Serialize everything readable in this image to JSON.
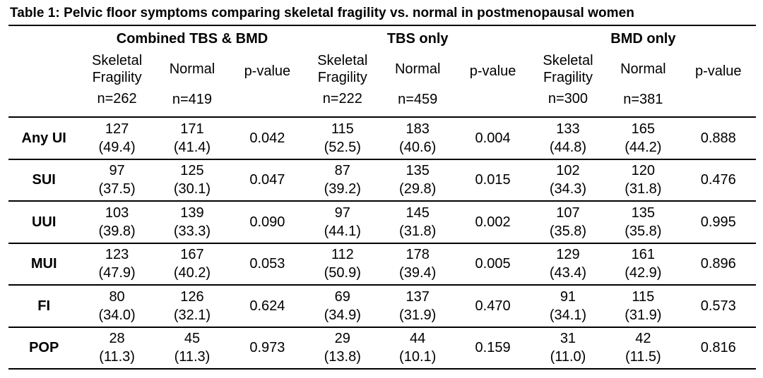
{
  "title": "Table 1: Pelvic floor symptoms comparing skeletal fragility vs. normal in postmenopausal women",
  "groups": [
    "Combined TBS & BMD",
    "TBS only",
    "BMD only"
  ],
  "subheaders": {
    "skeletal_line1": "Skeletal",
    "skeletal_line2": "Fragility",
    "normal": "Normal",
    "pvalue": "p-value"
  },
  "counts": {
    "combined": {
      "skeletal": "n=262",
      "normal": "n=419"
    },
    "tbs": {
      "skeletal": "n=222",
      "normal": "n=459"
    },
    "bmd": {
      "skeletal": "n=300",
      "normal": "n=381"
    }
  },
  "rows": [
    {
      "label": "Any UI",
      "combined": {
        "sf_n": "127",
        "sf_pct": "(49.4)",
        "nm_n": "171",
        "nm_pct": "(41.4)",
        "p": "0.042"
      },
      "tbs": {
        "sf_n": "115",
        "sf_pct": "(52.5)",
        "nm_n": "183",
        "nm_pct": "(40.6)",
        "p": "0.004"
      },
      "bmd": {
        "sf_n": "133",
        "sf_pct": "(44.8)",
        "nm_n": "165",
        "nm_pct": "(44.2)",
        "p": "0.888"
      }
    },
    {
      "label": "SUI",
      "combined": {
        "sf_n": "97",
        "sf_pct": "(37.5)",
        "nm_n": "125",
        "nm_pct": "(30.1)",
        "p": "0.047"
      },
      "tbs": {
        "sf_n": "87",
        "sf_pct": "(39.2)",
        "nm_n": "135",
        "nm_pct": "(29.8)",
        "p": "0.015"
      },
      "bmd": {
        "sf_n": "102",
        "sf_pct": "(34.3)",
        "nm_n": "120",
        "nm_pct": "(31.8)",
        "p": "0.476"
      }
    },
    {
      "label": "UUI",
      "combined": {
        "sf_n": "103",
        "sf_pct": "(39.8)",
        "nm_n": "139",
        "nm_pct": "(33.3)",
        "p": "0.090"
      },
      "tbs": {
        "sf_n": "97",
        "sf_pct": "(44.1)",
        "nm_n": "145",
        "nm_pct": "(31.8)",
        "p": "0.002"
      },
      "bmd": {
        "sf_n": "107",
        "sf_pct": "(35.8)",
        "nm_n": "135",
        "nm_pct": "(35.8)",
        "p": "0.995"
      }
    },
    {
      "label": "MUI",
      "combined": {
        "sf_n": "123",
        "sf_pct": "(47.9)",
        "nm_n": "167",
        "nm_pct": "(40.2)",
        "p": "0.053"
      },
      "tbs": {
        "sf_n": "112",
        "sf_pct": "(50.9)",
        "nm_n": "178",
        "nm_pct": "(39.4)",
        "p": "0.005"
      },
      "bmd": {
        "sf_n": "129",
        "sf_pct": "(43.4)",
        "nm_n": "161",
        "nm_pct": "(42.9)",
        "p": "0.896"
      }
    },
    {
      "label": "FI",
      "combined": {
        "sf_n": "80",
        "sf_pct": "(34.0)",
        "nm_n": "126",
        "nm_pct": "(32.1)",
        "p": "0.624"
      },
      "tbs": {
        "sf_n": "69",
        "sf_pct": "(34.9)",
        "nm_n": "137",
        "nm_pct": "(31.9)",
        "p": "0.470"
      },
      "bmd": {
        "sf_n": "91",
        "sf_pct": "(34.1)",
        "nm_n": "115",
        "nm_pct": "(31.9)",
        "p": "0.573"
      }
    },
    {
      "label": "POP",
      "combined": {
        "sf_n": "28",
        "sf_pct": "(11.3)",
        "nm_n": "45",
        "nm_pct": "(11.3)",
        "p": "0.973"
      },
      "tbs": {
        "sf_n": "29",
        "sf_pct": "(13.8)",
        "nm_n": "44",
        "nm_pct": "(10.1)",
        "p": "0.159"
      },
      "bmd": {
        "sf_n": "31",
        "sf_pct": "(11.0)",
        "nm_n": "42",
        "nm_pct": "(11.5)",
        "p": "0.816"
      }
    }
  ]
}
